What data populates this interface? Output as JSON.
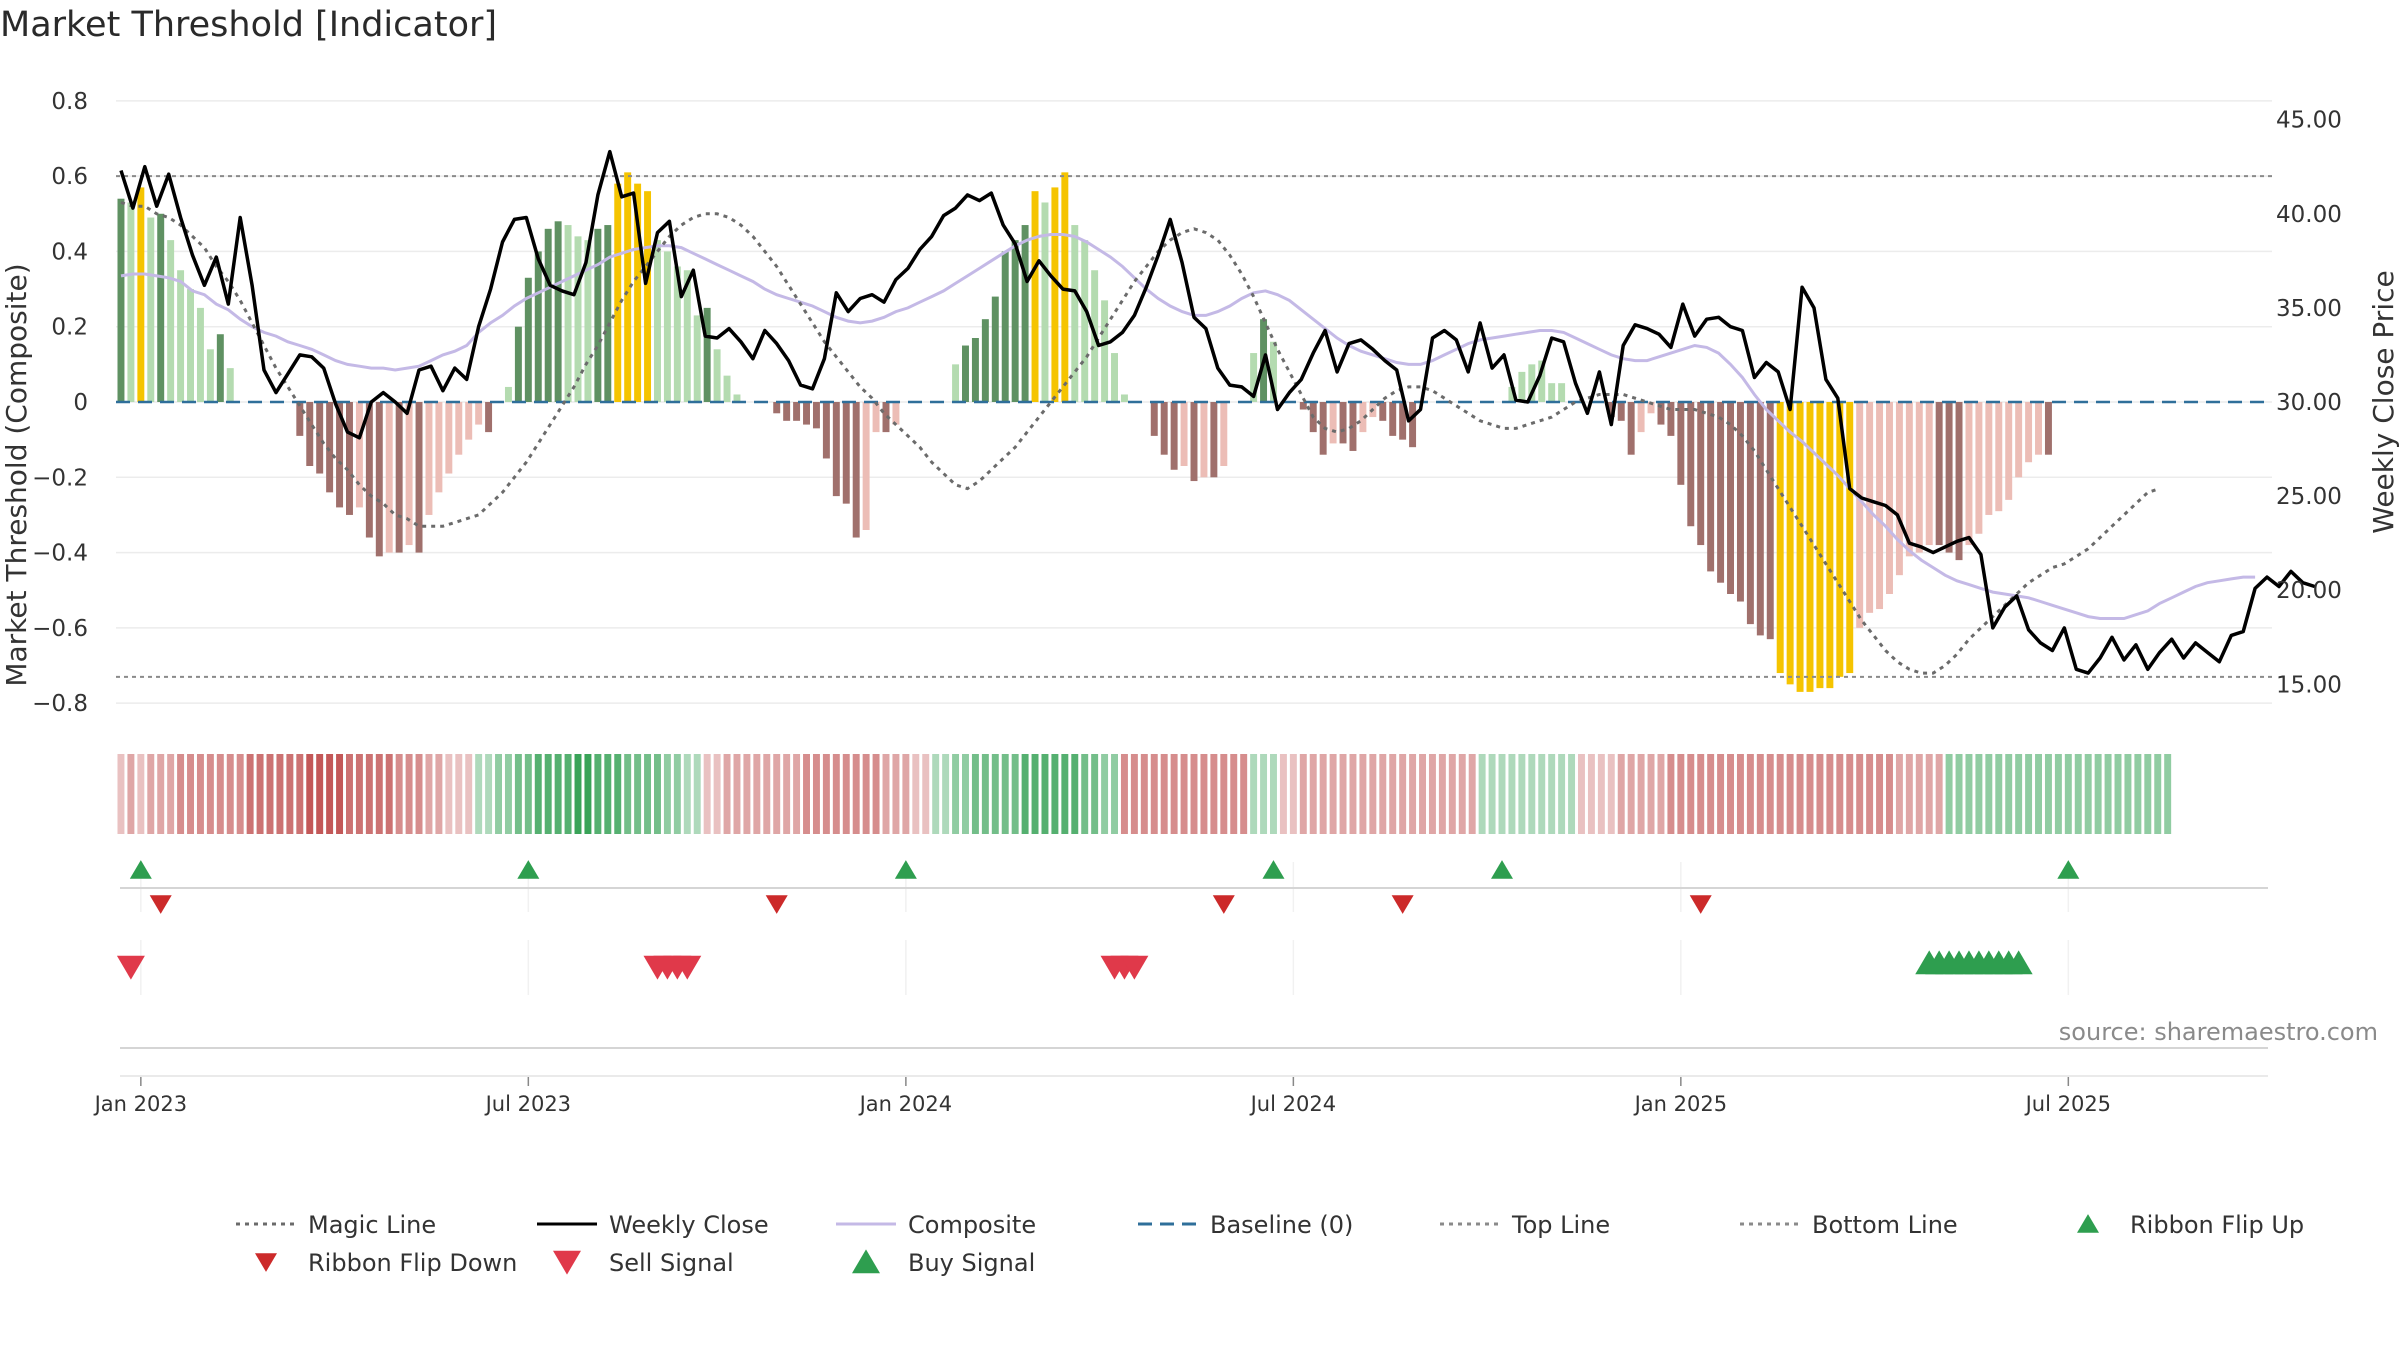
{
  "chart_data": {
    "type": "bar",
    "title": "Market Threshold [Indicator]",
    "ylabel_left": "Market Threshold (Composite)",
    "ylabel_right": "Weekly Close Price",
    "ylim_left": [
      -0.85,
      0.85
    ],
    "ylim_right": [
      13.0,
      47.0
    ],
    "left_ticks": [
      "0.8",
      "0.6",
      "0.4",
      "0.2",
      "0",
      "−0.2",
      "−0.4",
      "−0.6",
      "−0.8"
    ],
    "left_tick_values": [
      0.8,
      0.6,
      0.4,
      0.2,
      0,
      -0.2,
      -0.4,
      -0.6,
      -0.8
    ],
    "right_ticks": [
      "45.00",
      "40.00",
      "35.00",
      "30.00",
      "25.00",
      "20.00",
      "15.00"
    ],
    "right_tick_values": [
      45,
      40,
      35,
      30,
      25,
      20,
      15
    ],
    "date_ticks": [
      "Jan 2023",
      "Jul 2023",
      "Jan 2024",
      "Jul 2024",
      "Jan 2025",
      "Jul 2025"
    ],
    "date_tick_weeks": [
      2,
      41,
      79,
      118,
      157,
      196
    ],
    "top_line": 0.6,
    "bottom_line": -0.73,
    "baseline": 0,
    "weeks": 217,
    "composite_bars": [
      0.54,
      0.53,
      0.57,
      0.49,
      0.5,
      0.43,
      0.35,
      0.3,
      0.25,
      0.14,
      0.18,
      0.09,
      0.0,
      0.0,
      0.0,
      0.0,
      0.0,
      0.0,
      -0.09,
      -0.17,
      -0.19,
      -0.24,
      -0.28,
      -0.3,
      -0.28,
      -0.36,
      -0.41,
      -0.4,
      -0.4,
      -0.38,
      -0.4,
      -0.3,
      -0.24,
      -0.19,
      -0.14,
      -0.1,
      -0.06,
      -0.08,
      0.0,
      0.04,
      0.2,
      0.33,
      0.4,
      0.46,
      0.48,
      0.47,
      0.44,
      0.43,
      0.46,
      0.47,
      0.58,
      0.61,
      0.58,
      0.56,
      0.43,
      0.4,
      0.36,
      0.35,
      0.23,
      0.25,
      0.14,
      0.07,
      0.02,
      0.0,
      0.0,
      0.0,
      -0.03,
      -0.05,
      -0.05,
      -0.06,
      -0.07,
      -0.15,
      -0.25,
      -0.27,
      -0.36,
      -0.34,
      -0.08,
      -0.08,
      -0.06,
      0.0,
      0.0,
      0.0,
      0.0,
      0.0,
      0.1,
      0.15,
      0.17,
      0.22,
      0.28,
      0.4,
      0.43,
      0.47,
      0.56,
      0.53,
      0.57,
      0.61,
      0.47,
      0.43,
      0.35,
      0.27,
      0.13,
      0.02,
      0.0,
      0.0,
      -0.09,
      -0.14,
      -0.18,
      -0.17,
      -0.21,
      -0.2,
      -0.2,
      -0.17,
      0.0,
      0.0,
      0.13,
      0.22,
      0.16,
      0.0,
      0.0,
      -0.02,
      -0.08,
      -0.14,
      -0.11,
      -0.11,
      -0.13,
      -0.08,
      -0.04,
      -0.05,
      -0.09,
      -0.1,
      -0.12,
      0.0,
      0.0,
      0.0,
      0.0,
      0.0,
      0.0,
      0.0,
      0.0,
      0.0,
      0.04,
      0.08,
      0.1,
      0.11,
      0.05,
      0.05,
      0.0,
      0.0,
      0.0,
      0.0,
      -0.04,
      -0.05,
      -0.14,
      -0.08,
      -0.03,
      -0.06,
      -0.09,
      -0.22,
      -0.33,
      -0.38,
      -0.45,
      -0.48,
      -0.51,
      -0.53,
      -0.59,
      -0.62,
      -0.63,
      -0.72,
      -0.75,
      -0.77,
      -0.77,
      -0.76,
      -0.76,
      -0.73,
      -0.72,
      -0.6,
      -0.56,
      -0.55,
      -0.51,
      -0.46,
      -0.41,
      -0.4,
      -0.38,
      -0.38,
      -0.4,
      -0.42,
      -0.38,
      -0.35,
      -0.3,
      -0.29,
      -0.26,
      -0.2,
      -0.16,
      -0.14,
      -0.14,
      0,
      0,
      0,
      0,
      0,
      0,
      0,
      0,
      0,
      0,
      0,
      0,
      0,
      0,
      0,
      0,
      0
    ],
    "weekly_close": [
      42.3,
      40.3,
      42.5,
      40.4,
      42.1,
      39.8,
      37.8,
      36.2,
      37.7,
      35.2,
      39.8,
      36.2,
      31.7,
      30.5,
      31.5,
      32.5,
      32.4,
      31.8,
      29.9,
      28.4,
      28.1,
      30.0,
      30.5,
      30.0,
      29.4,
      31.7,
      31.9,
      30.6,
      31.8,
      31.2,
      34.0,
      36.0,
      38.5,
      39.7,
      39.8,
      37.6,
      36.2,
      35.9,
      35.7,
      37.4,
      41.0,
      43.3,
      40.9,
      41.1,
      36.3,
      39.0,
      39.6,
      35.6,
      37.0,
      33.5,
      33.4,
      33.9,
      33.2,
      32.3,
      33.8,
      33.1,
      32.2,
      30.9,
      30.7,
      32.3,
      35.8,
      34.8,
      35.5,
      35.7,
      35.3,
      36.5,
      37.1,
      38.1,
      38.8,
      39.9,
      40.3,
      41.0,
      40.7,
      41.1,
      39.4,
      38.4,
      36.4,
      37.5,
      36.7,
      36.0,
      35.9,
      34.8,
      33.0,
      33.2,
      33.7,
      34.6,
      36.1,
      37.8,
      39.7,
      37.4,
      34.5,
      33.9,
      31.8,
      30.9,
      30.8,
      30.3,
      32.5,
      29.6,
      30.5,
      31.2,
      32.6,
      33.8,
      31.6,
      33.1,
      33.3,
      32.8,
      32.2,
      31.7,
      29.0,
      29.6,
      33.4,
      33.8,
      33.3,
      31.6,
      34.2,
      31.8,
      32.5,
      30.1,
      30.0,
      31.4,
      33.4,
      33.2,
      31.0,
      29.4,
      31.6,
      28.8,
      33.0,
      34.1,
      33.9,
      33.6,
      32.9,
      35.2,
      33.5,
      34.4,
      34.5,
      34.0,
      33.8,
      31.3,
      32.1,
      31.6,
      29.6,
      36.1,
      35.0,
      31.2,
      30.2,
      25.4,
      24.9,
      24.7,
      24.5,
      24.0,
      22.5,
      22.3,
      22.0,
      22.3,
      22.6,
      22.8,
      21.9,
      18.0,
      19.1,
      19.7,
      17.9,
      17.2,
      16.8,
      18.0,
      15.8,
      15.6,
      16.4,
      17.5,
      16.3,
      17.1,
      15.8,
      16.7,
      17.4,
      16.4,
      17.2,
      16.7,
      16.2,
      17.6,
      17.8,
      20.1,
      20.7,
      20.2,
      21.0,
      20.4,
      20.2
    ],
    "composite": [
      36.7,
      36.8,
      36.8,
      36.7,
      36.6,
      36.4,
      35.9,
      35.7,
      35.2,
      34.9,
      34.4,
      34.0,
      33.7,
      33.5,
      33.2,
      33.0,
      32.8,
      32.5,
      32.2,
      32.0,
      31.9,
      31.8,
      31.8,
      31.7,
      31.8,
      31.9,
      32.2,
      32.5,
      32.7,
      33.0,
      33.7,
      34.2,
      34.6,
      35.1,
      35.5,
      35.8,
      36.1,
      36.4,
      36.7,
      37.0,
      37.3,
      37.7,
      37.9,
      38.1,
      38.2,
      38.3,
      38.3,
      38.2,
      37.9,
      37.6,
      37.3,
      37.0,
      36.7,
      36.4,
      36.0,
      35.7,
      35.5,
      35.3,
      35.1,
      34.8,
      34.5,
      34.3,
      34.2,
      34.3,
      34.5,
      34.8,
      35.0,
      35.3,
      35.6,
      35.9,
      36.3,
      36.7,
      37.1,
      37.5,
      37.9,
      38.3,
      38.6,
      38.8,
      38.9,
      38.9,
      38.8,
      38.5,
      38.1,
      37.7,
      37.2,
      36.6,
      36.0,
      35.5,
      35.1,
      34.8,
      34.6,
      34.6,
      34.8,
      35.1,
      35.5,
      35.8,
      35.9,
      35.7,
      35.4,
      34.9,
      34.4,
      33.9,
      33.4,
      33.0,
      32.7,
      32.5,
      32.3,
      32.1,
      32.0,
      32.0,
      32.2,
      32.5,
      32.8,
      33.1,
      33.3,
      33.4,
      33.5,
      33.6,
      33.7,
      33.8,
      33.8,
      33.7,
      33.4,
      33.1,
      32.8,
      32.5,
      32.3,
      32.2,
      32.2,
      32.4,
      32.6,
      32.8,
      33.0,
      32.9,
      32.6,
      32.0,
      31.3,
      30.4,
      29.6,
      29.0,
      28.4,
      27.9,
      27.3,
      26.7,
      26.1,
      25.4,
      24.7,
      24.0,
      23.4,
      22.7,
      22.1,
      21.6,
      21.2,
      20.8,
      20.5,
      20.3,
      20.1,
      19.9,
      19.8,
      19.7,
      19.6,
      19.4,
      19.2,
      19.0,
      18.8,
      18.6,
      18.5,
      18.5,
      18.5,
      18.7,
      18.9,
      19.3,
      19.6,
      19.9,
      20.2,
      20.4,
      20.5,
      20.6,
      20.7,
      20.7
    ],
    "magic_line": [
      0.53,
      0.52,
      0.52,
      0.5,
      0.49,
      0.47,
      0.44,
      0.41,
      0.36,
      0.32,
      0.27,
      0.21,
      0.15,
      0.09,
      0.04,
      -0.01,
      -0.06,
      -0.11,
      -0.15,
      -0.18,
      -0.22,
      -0.25,
      -0.27,
      -0.3,
      -0.31,
      -0.33,
      -0.33,
      -0.33,
      -0.32,
      -0.31,
      -0.3,
      -0.27,
      -0.24,
      -0.2,
      -0.16,
      -0.11,
      -0.06,
      -0.01,
      0.04,
      0.1,
      0.15,
      0.21,
      0.27,
      0.32,
      0.36,
      0.4,
      0.44,
      0.47,
      0.49,
      0.5,
      0.5,
      0.49,
      0.47,
      0.44,
      0.4,
      0.36,
      0.31,
      0.26,
      0.21,
      0.16,
      0.12,
      0.08,
      0.04,
      0.01,
      -0.03,
      -0.06,
      -0.09,
      -0.12,
      -0.16,
      -0.19,
      -0.22,
      -0.23,
      -0.21,
      -0.18,
      -0.15,
      -0.12,
      -0.08,
      -0.04,
      0.0,
      0.04,
      0.08,
      0.12,
      0.17,
      0.22,
      0.27,
      0.32,
      0.36,
      0.4,
      0.43,
      0.45,
      0.46,
      0.45,
      0.43,
      0.39,
      0.34,
      0.28,
      0.21,
      0.14,
      0.08,
      0.02,
      -0.04,
      -0.07,
      -0.08,
      -0.07,
      -0.05,
      -0.02,
      0.01,
      0.03,
      0.04,
      0.04,
      0.03,
      0.01,
      -0.01,
      -0.03,
      -0.05,
      -0.06,
      -0.07,
      -0.07,
      -0.06,
      -0.05,
      -0.04,
      -0.02,
      0.0,
      0.01,
      0.02,
      0.02,
      0.02,
      0.01,
      0.0,
      -0.01,
      -0.02,
      -0.02,
      -0.02,
      -0.03,
      -0.04,
      -0.06,
      -0.09,
      -0.13,
      -0.18,
      -0.23,
      -0.28,
      -0.33,
      -0.38,
      -0.43,
      -0.48,
      -0.53,
      -0.58,
      -0.62,
      -0.66,
      -0.69,
      -0.71,
      -0.72,
      -0.72,
      -0.7,
      -0.67,
      -0.63,
      -0.6,
      -0.57,
      -0.54,
      -0.51,
      -0.48,
      -0.46,
      -0.44,
      -0.43,
      -0.41,
      -0.39,
      -0.36,
      -0.33,
      -0.3,
      -0.27,
      -0.24,
      -0.23
    ],
    "overlay_start_week": 0,
    "overlay_week_step": 1.2,
    "ribbon": [
      -1,
      -2,
      -1,
      -2,
      -2,
      -2,
      -3,
      -3,
      -3,
      -3,
      -3,
      -3,
      -3,
      -4,
      -4,
      -4,
      -4,
      -4,
      -4,
      -5,
      -5,
      -5,
      -5,
      -4,
      -4,
      -4,
      -4,
      -4,
      -3,
      -3,
      -3,
      -2,
      -2,
      -1,
      -1,
      -1,
      1,
      1,
      2,
      2,
      3,
      3,
      4,
      4,
      4,
      4,
      5,
      5,
      4,
      4,
      4,
      3,
      3,
      3,
      3,
      2,
      2,
      1,
      1,
      -1,
      -1,
      -2,
      -2,
      -2,
      -2,
      -2,
      -2,
      -2,
      -2,
      -3,
      -3,
      -3,
      -3,
      -3,
      -3,
      -3,
      -3,
      -2,
      -2,
      -2,
      -1,
      -1,
      1,
      1,
      2,
      2,
      3,
      3,
      3,
      3,
      3,
      4,
      4,
      4,
      4,
      4,
      4,
      3,
      3,
      2,
      2,
      -3,
      -3,
      -3,
      -3,
      -3,
      -3,
      -3,
      -3,
      -3,
      -3,
      -3,
      -3,
      -3,
      1,
      1,
      1,
      -1,
      -1,
      -2,
      -2,
      -2,
      -2,
      -2,
      -2,
      -2,
      -2,
      -2,
      -2,
      -2,
      -2,
      -2,
      -2,
      -2,
      -2,
      -2,
      -2,
      1,
      1,
      1,
      1,
      1,
      1,
      1,
      1,
      1,
      1,
      -1,
      -1,
      -1,
      -1,
      -2,
      -2,
      -2,
      -2,
      -2,
      -3,
      -3,
      -3,
      -3,
      -3,
      -3,
      -3,
      -3,
      -3,
      -3,
      -3,
      -3,
      -3,
      -3,
      -3,
      -3,
      -3,
      -3,
      -3,
      -3,
      -3,
      -3,
      -3,
      -2,
      -2,
      -2,
      -2,
      -2,
      2,
      2,
      2,
      2,
      2,
      2,
      2,
      2,
      2,
      2,
      2,
      2,
      2,
      2,
      2,
      2,
      2,
      2,
      2,
      2,
      2,
      2,
      2
    ],
    "ribbon_flip_up_weeks": [
      2,
      41,
      79,
      116,
      139,
      196
    ],
    "ribbon_flip_down_weeks": [
      4,
      66,
      111,
      129,
      159
    ],
    "sell_signal_weeks": [
      1,
      54,
      55,
      56,
      57,
      100,
      101,
      102
    ],
    "buy_signal_weeks": [
      182,
      183,
      184,
      185,
      186,
      187,
      188,
      189,
      190,
      191
    ],
    "source": "source: sharemaestro.com",
    "legend": [
      {
        "label": "Magic Line",
        "style": "dotted",
        "color": "#6b6b6b"
      },
      {
        "label": "Weekly Close",
        "style": "solid",
        "color": "#000000"
      },
      {
        "label": "Composite",
        "style": "solid",
        "color": "#c4b9e6"
      },
      {
        "label": "Baseline (0)",
        "style": "dashed",
        "color": "#2f6f9a"
      },
      {
        "label": "Top Line",
        "style": "dotted",
        "color": "#8a8a8a"
      },
      {
        "label": "Bottom Line",
        "style": "dotted",
        "color": "#8a8a8a"
      },
      {
        "label": "Ribbon Flip Up",
        "style": "triangle-up",
        "color": "#2e9e4f"
      },
      {
        "label": "Ribbon Flip Down",
        "style": "triangle-down",
        "color": "#cc2a2a"
      },
      {
        "label": "Sell Signal",
        "style": "triangle-down",
        "color": "#e0394a"
      },
      {
        "label": "Buy Signal",
        "style": "triangle-up",
        "color": "#2e9e4f"
      }
    ],
    "colors": {
      "top_extreme": "#f5c400",
      "pos_strong": "#5f9162",
      "pos_weak": "#b4dbb0",
      "neg_strong": "#a0706c",
      "neg_weak": "#ecbdb6",
      "close": "#000000",
      "composite": "#c4b9e6",
      "magic": "#6b6b6b",
      "baseline": "#2f6f9a",
      "guide": "#8a8a8a",
      "flip_up": "#2e9e4f",
      "flip_down": "#cc2a2a",
      "sell": "#e0394a",
      "buy": "#2e9e4f"
    }
  }
}
